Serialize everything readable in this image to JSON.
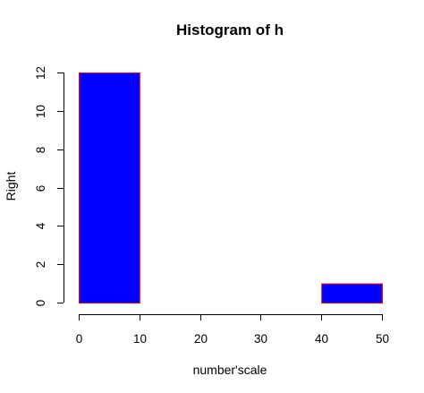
{
  "chart_data": {
    "type": "bar",
    "title": "Histogram of h",
    "xlabel": "number'scale",
    "ylabel": "Right",
    "bins": [
      {
        "from": 0,
        "to": 10,
        "count": 12
      },
      {
        "from": 10,
        "to": 20,
        "count": 0
      },
      {
        "from": 20,
        "to": 30,
        "count": 0
      },
      {
        "from": 30,
        "to": 40,
        "count": 0
      },
      {
        "from": 40,
        "to": 50,
        "count": 1
      }
    ],
    "xticks": [
      0,
      10,
      20,
      30,
      40,
      50
    ],
    "yticks": [
      0,
      2,
      4,
      6,
      8,
      10,
      12
    ],
    "xlim": [
      0,
      50
    ],
    "ylim": [
      0,
      12
    ],
    "grid": false,
    "bar_fill": "#0000ff",
    "bar_border": "#ff0000"
  }
}
